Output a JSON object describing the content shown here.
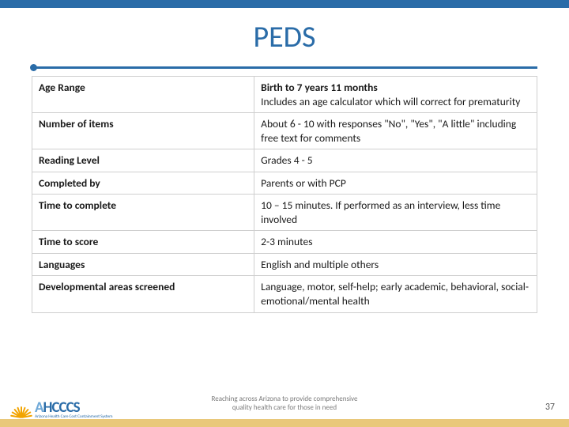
{
  "title": "PEDS",
  "colors": {
    "accent": "#2a6ca8",
    "band": "#e9c87a",
    "burst": "#f2a400",
    "border": "#cfcfcf",
    "text": "#1a1a1a",
    "muted": "#7a7a7a"
  },
  "table": {
    "rows": [
      {
        "label": "Age Range",
        "value_bold": "Birth to 7 years 11 months",
        "value_rest": "Includes an age calculator which will correct for prematurity"
      },
      {
        "label": "Number of items",
        "value": "About 6 - 10 with responses \"No\", \"Yes\", \"A little\" including free text for comments"
      },
      {
        "label": "Reading Level",
        "value": "Grades 4 - 5"
      },
      {
        "label": "Completed by",
        "value": "Parents or with PCP"
      },
      {
        "label": "Time to complete",
        "value": "10 – 15 minutes.  If performed as an interview, less time involved"
      },
      {
        "label": "Time to score",
        "value": "2-3 minutes"
      },
      {
        "label": "Languages",
        "value": "English and multiple others"
      },
      {
        "label": "Developmental areas screened",
        "value": "Language, motor, self-help; early academic, behavioral, social-emotional/mental health"
      }
    ]
  },
  "footer": {
    "tagline_line1": "Reaching across Arizona to provide comprehensive",
    "tagline_line2": "quality health care for those in need",
    "page_number": "37",
    "logo_main_a": "A",
    "logo_main_b": "HCCCS",
    "logo_sub": "Arizona Health Care Cost Containment System"
  }
}
